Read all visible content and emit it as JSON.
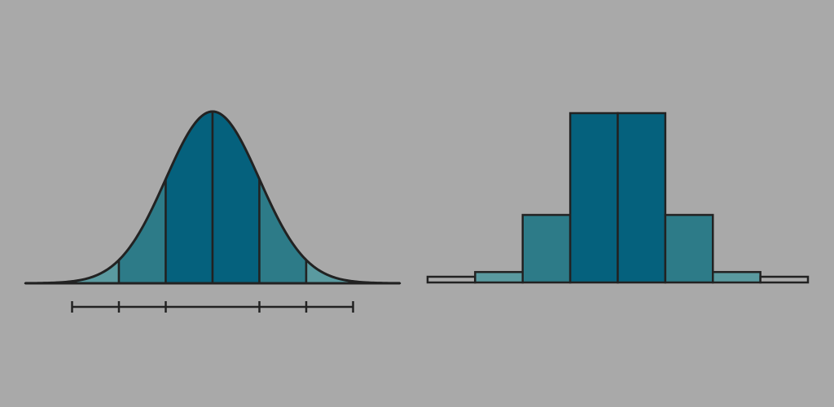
{
  "colors": {
    "background": "#a9a9a9",
    "outline": "#222222",
    "tail": "#ababab",
    "band_1": "#5a9aa0",
    "band_2": "#2d7b88",
    "band_3": "#05617d"
  },
  "chart_data": [
    {
      "type": "area",
      "x_range": [
        -4,
        4
      ],
      "bands": [
        {
          "from": -4,
          "to": -3,
          "color_key": "tail"
        },
        {
          "from": -3,
          "to": -2,
          "color_key": "band_1"
        },
        {
          "from": -2,
          "to": -1,
          "color_key": "band_2"
        },
        {
          "from": -1,
          "to": 0,
          "color_key": "band_3"
        },
        {
          "from": 0,
          "to": 1,
          "color_key": "band_3"
        },
        {
          "from": 1,
          "to": 2,
          "color_key": "band_2"
        },
        {
          "from": 2,
          "to": 3,
          "color_key": "band_1"
        },
        {
          "from": 3,
          "to": 4,
          "color_key": "tail"
        }
      ],
      "scale_ticks": [
        -3,
        -2,
        -1,
        1,
        2,
        3
      ],
      "scale_range": [
        -3,
        3
      ]
    },
    {
      "type": "bar",
      "categories": [
        "",
        "",
        "",
        "",
        "",
        "",
        "",
        ""
      ],
      "values": [
        0.1,
        2.1,
        13.6,
        34.1,
        34.1,
        13.6,
        2.1,
        0.1
      ],
      "color_keys": [
        "tail",
        "band_1",
        "band_2",
        "band_3",
        "band_3",
        "band_2",
        "band_1",
        "tail"
      ],
      "ylim": [
        0,
        34.1
      ]
    }
  ]
}
